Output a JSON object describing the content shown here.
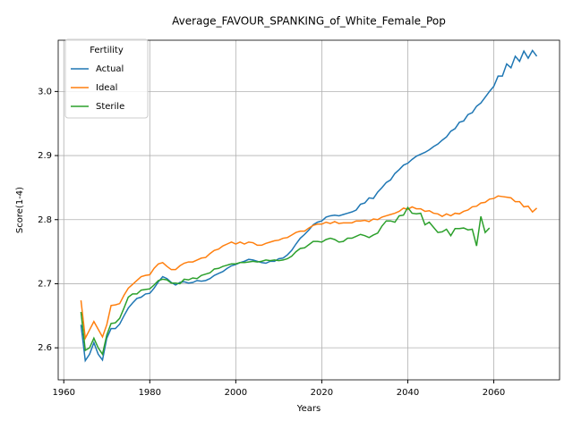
{
  "chart_data": {
    "type": "line",
    "title": "Average_FAVOUR_SPANKING_of_White_Female_Pop",
    "xlabel": "Years",
    "ylabel": "Score(1-4)",
    "legend_title": "Fertility",
    "legend": "upper left",
    "grid": true,
    "xlim": [
      1958.7,
      2075.3
    ],
    "ylim": [
      2.55,
      3.08
    ],
    "xticks": [
      1960,
      1980,
      2000,
      2020,
      2040,
      2060
    ],
    "yticks": [
      2.6,
      2.7,
      2.8,
      2.9,
      {
        "value": 3,
        "label": "3.0"
      }
    ],
    "x": [
      1964,
      1965,
      1966,
      1967,
      1968,
      1969,
      1970,
      1971,
      1972,
      1973,
      1974,
      1975,
      1976,
      1977,
      1978,
      1979,
      1980,
      1981,
      1982,
      1983,
      1984,
      1985,
      1986,
      1987,
      1988,
      1989,
      1990,
      1991,
      1992,
      1993,
      1994,
      1995,
      1996,
      1997,
      1998,
      1999,
      2000,
      2001,
      2002,
      2003,
      2004,
      2005,
      2006,
      2007,
      2008,
      2009,
      2010,
      2011,
      2012,
      2013,
      2014,
      2015,
      2016,
      2017,
      2018,
      2019,
      2020,
      2021,
      2022,
      2023,
      2024,
      2025,
      2026,
      2027,
      2028,
      2029,
      2030,
      2031,
      2032,
      2033,
      2034,
      2035,
      2036,
      2037,
      2038,
      2039,
      2040,
      2041,
      2042,
      2043,
      2044,
      2045,
      2046,
      2047,
      2048,
      2049,
      2050,
      2051,
      2052,
      2053,
      2054,
      2055,
      2056,
      2057,
      2058,
      2059,
      2060,
      2061,
      2062,
      2063,
      2064,
      2065,
      2066,
      2067,
      2068,
      2069,
      2070
    ],
    "series": [
      {
        "name": "Actual",
        "color": "#1f77b4",
        "values": [
          2.636,
          2.58,
          2.59,
          2.608,
          2.59,
          2.581,
          2.615,
          2.63,
          2.63,
          2.637,
          2.65,
          2.662,
          2.67,
          2.677,
          2.679,
          2.684,
          2.685,
          2.693,
          2.703,
          2.711,
          2.708,
          2.702,
          2.698,
          2.702,
          2.703,
          2.701,
          2.702,
          2.705,
          2.704,
          2.705,
          2.708,
          2.713,
          2.716,
          2.719,
          2.724,
          2.728,
          2.73,
          2.733,
          2.735,
          2.738,
          2.737,
          2.735,
          2.733,
          2.732,
          2.735,
          2.735,
          2.739,
          2.74,
          2.745,
          2.752,
          2.762,
          2.771,
          2.777,
          2.784,
          2.792,
          2.796,
          2.798,
          2.804,
          2.806,
          2.807,
          2.806,
          2.808,
          2.81,
          2.812,
          2.815,
          2.824,
          2.826,
          2.834,
          2.833,
          2.843,
          2.85,
          2.858,
          2.862,
          2.872,
          2.878,
          2.885,
          2.888,
          2.894,
          2.899,
          2.902,
          2.905,
          2.909,
          2.914,
          2.918,
          2.924,
          2.929,
          2.938,
          2.942,
          2.952,
          2.954,
          2.964,
          2.967,
          2.977,
          2.982,
          2.991,
          3.0,
          3.008,
          3.024,
          3.024,
          3.043,
          3.037,
          3.055,
          3.047,
          3.063,
          3.052,
          3.064,
          3.055
        ]
      },
      {
        "name": "Ideal",
        "color": "#ff7f0e",
        "values": [
          2.674,
          2.615,
          2.628,
          2.641,
          2.629,
          2.617,
          2.636,
          2.666,
          2.667,
          2.669,
          2.682,
          2.693,
          2.699,
          2.705,
          2.711,
          2.713,
          2.714,
          2.724,
          2.731,
          2.733,
          2.727,
          2.722,
          2.722,
          2.728,
          2.732,
          2.734,
          2.734,
          2.737,
          2.74,
          2.741,
          2.747,
          2.752,
          2.754,
          2.759,
          2.762,
          2.765,
          2.762,
          2.765,
          2.762,
          2.765,
          2.764,
          2.76,
          2.76,
          2.763,
          2.765,
          2.767,
          2.768,
          2.771,
          2.772,
          2.776,
          2.78,
          2.782,
          2.782,
          2.787,
          2.791,
          2.793,
          2.793,
          2.796,
          2.794,
          2.797,
          2.794,
          2.795,
          2.795,
          2.795,
          2.798,
          2.798,
          2.799,
          2.797,
          2.801,
          2.8,
          2.804,
          2.806,
          2.808,
          2.81,
          2.813,
          2.818,
          2.816,
          2.82,
          2.817,
          2.817,
          2.813,
          2.814,
          2.81,
          2.809,
          2.805,
          2.809,
          2.806,
          2.81,
          2.809,
          2.813,
          2.815,
          2.82,
          2.821,
          2.826,
          2.827,
          2.832,
          2.833,
          2.837,
          2.836,
          2.835,
          2.834,
          2.828,
          2.828,
          2.82,
          2.821,
          2.812,
          2.818
        ]
      },
      {
        "name": "Sterile",
        "color": "#2ca02c",
        "values": [
          2.656,
          2.596,
          2.6,
          2.615,
          2.6,
          2.59,
          2.62,
          2.638,
          2.639,
          2.646,
          2.662,
          2.679,
          2.684,
          2.684,
          2.69,
          2.691,
          2.692,
          2.698,
          2.705,
          2.707,
          2.706,
          2.701,
          2.701,
          2.7,
          2.707,
          2.706,
          2.709,
          2.708,
          2.713,
          2.715,
          2.717,
          2.723,
          2.724,
          2.727,
          2.729,
          2.731,
          2.731,
          2.733,
          2.733,
          2.734,
          2.735,
          2.734,
          2.735,
          2.737,
          2.736,
          2.737,
          2.736,
          2.737,
          2.739,
          2.743,
          2.75,
          2.755,
          2.756,
          2.761,
          2.766,
          2.766,
          2.765,
          2.769,
          2.771,
          2.769,
          2.765,
          2.766,
          2.771,
          2.771,
          2.774,
          2.777,
          2.775,
          2.772,
          2.776,
          2.779,
          2.79,
          2.798,
          2.798,
          2.796,
          2.806,
          2.807,
          2.819,
          2.81,
          2.809,
          2.81,
          2.792,
          2.796,
          2.788,
          2.78,
          2.781,
          2.785,
          2.775,
          2.786,
          2.786,
          2.787,
          2.784,
          2.785,
          2.759,
          2.805,
          2.78,
          2.787,
          null,
          null,
          null,
          null,
          null,
          null,
          null,
          null,
          null,
          null,
          null
        ]
      }
    ]
  }
}
